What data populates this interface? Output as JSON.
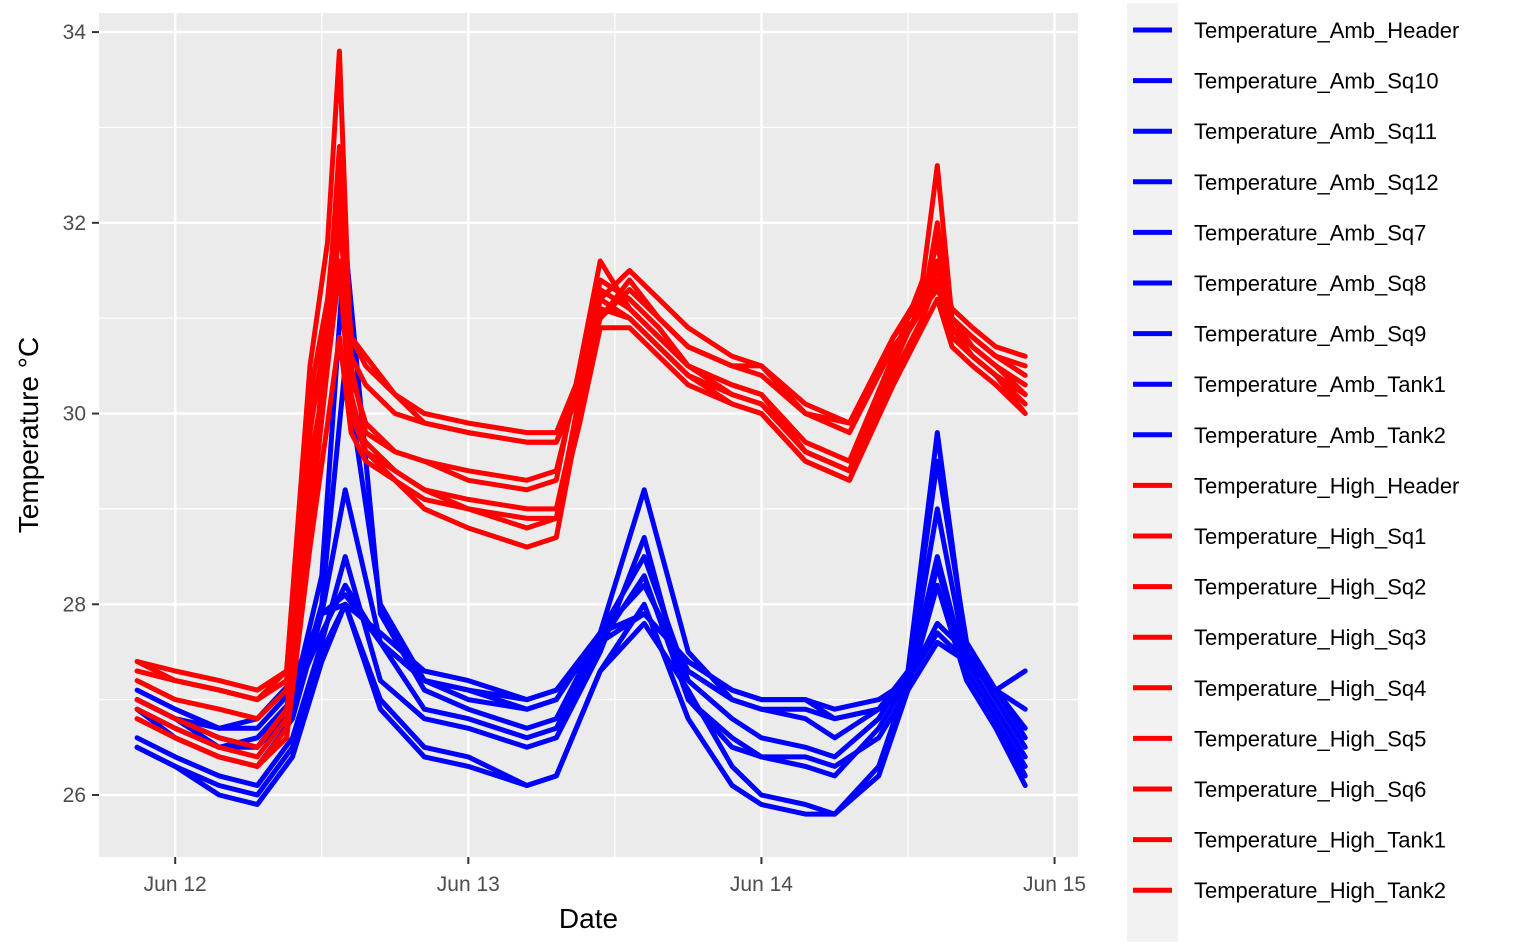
{
  "chart_data": {
    "type": "line",
    "title": "",
    "xlabel": "Date",
    "ylabel": "Temperature °C",
    "x_unit": "days since Jun 12 00:00",
    "xlim": [
      -0.26,
      3.08
    ],
    "ylim": [
      25.35,
      34.2
    ],
    "x_ticks": [
      {
        "value": 0,
        "label": "Jun 12"
      },
      {
        "value": 1,
        "label": "Jun 13"
      },
      {
        "value": 2,
        "label": "Jun 14"
      },
      {
        "value": 3,
        "label": "Jun 15"
      }
    ],
    "y_ticks": [
      {
        "value": 26,
        "label": "26"
      },
      {
        "value": 28,
        "label": "28"
      },
      {
        "value": 30,
        "label": "30"
      },
      {
        "value": 32,
        "label": "32"
      },
      {
        "value": 34,
        "label": "34"
      }
    ],
    "legend_position": "right",
    "colors": {
      "amb": "#0000FF",
      "high": "#FF0000",
      "panel": "#EBEBEB",
      "grid": "#FFFFFF",
      "legend_bg": "#F2F2F2"
    },
    "series": [
      {
        "name": "Temperature_Amb_Header",
        "group": "amb",
        "x": [
          -0.13,
          0.0,
          0.15,
          0.28,
          0.4,
          0.5,
          0.58,
          0.7,
          0.85,
          1.0,
          1.2,
          1.3,
          1.45,
          1.6,
          1.75,
          1.9,
          2.0,
          2.15,
          2.25,
          2.4,
          2.5,
          2.6,
          2.7,
          2.8,
          2.9
        ],
        "y": [
          26.9,
          26.7,
          26.5,
          26.6,
          27.0,
          27.7,
          28.2,
          27.6,
          27.2,
          27.1,
          27.0,
          27.1,
          27.6,
          27.9,
          27.4,
          27.1,
          27.0,
          27.0,
          26.8,
          26.9,
          27.1,
          27.6,
          27.4,
          27.1,
          26.7
        ]
      },
      {
        "name": "Temperature_Amb_Sq10",
        "group": "amb",
        "x": [
          -0.13,
          0.0,
          0.15,
          0.28,
          0.4,
          0.5,
          0.58,
          0.7,
          0.85,
          1.0,
          1.2,
          1.3,
          1.45,
          1.6,
          1.75,
          1.9,
          2.0,
          2.15,
          2.25,
          2.4,
          2.5,
          2.6,
          2.7,
          2.8,
          2.9
        ],
        "y": [
          26.5,
          26.3,
          26.1,
          26.0,
          26.5,
          27.5,
          28.0,
          27.0,
          26.5,
          26.4,
          26.1,
          26.2,
          27.3,
          27.8,
          27.1,
          26.3,
          26.0,
          25.9,
          25.8,
          26.3,
          27.2,
          28.5,
          27.3,
          26.8,
          26.2
        ]
      },
      {
        "name": "Temperature_Amb_Sq11",
        "group": "amb",
        "x": [
          -0.13,
          0.0,
          0.15,
          0.28,
          0.4,
          0.5,
          0.58,
          0.7,
          0.85,
          1.0,
          1.2,
          1.3,
          1.45,
          1.6,
          1.75,
          1.9,
          2.0,
          2.15,
          2.25,
          2.4,
          2.5,
          2.6,
          2.7,
          2.8,
          2.9
        ],
        "y": [
          27.0,
          26.8,
          26.5,
          26.5,
          26.9,
          28.0,
          30.5,
          28.0,
          27.2,
          27.0,
          26.9,
          27.0,
          27.7,
          28.2,
          27.3,
          27.0,
          26.9,
          26.8,
          26.6,
          26.9,
          27.3,
          29.5,
          27.6,
          27.1,
          26.6
        ]
      },
      {
        "name": "Temperature_Amb_Sq12",
        "group": "amb",
        "x": [
          -0.13,
          0.0,
          0.15,
          0.28,
          0.4,
          0.5,
          0.58,
          0.7,
          0.85,
          1.0,
          1.2,
          1.3,
          1.45,
          1.6,
          1.75,
          1.9,
          2.0,
          2.15,
          2.25,
          2.4,
          2.5,
          2.6,
          2.7,
          2.8,
          2.9
        ],
        "y": [
          27.0,
          26.8,
          26.6,
          26.5,
          27.0,
          28.3,
          31.8,
          27.9,
          27.1,
          26.9,
          26.7,
          26.8,
          27.7,
          28.5,
          27.2,
          26.8,
          26.6,
          26.5,
          26.4,
          26.8,
          27.3,
          29.8,
          27.5,
          27.0,
          26.5
        ]
      },
      {
        "name": "Temperature_Amb_Sq7",
        "group": "amb",
        "x": [
          -0.13,
          0.0,
          0.15,
          0.28,
          0.4,
          0.5,
          0.58,
          0.7,
          0.85,
          1.0,
          1.2,
          1.3,
          1.45,
          1.6,
          1.75,
          1.9,
          2.0,
          2.15,
          2.25,
          2.4,
          2.5,
          2.6,
          2.7,
          2.8,
          2.9
        ],
        "y": [
          26.9,
          26.6,
          26.4,
          26.3,
          26.8,
          27.9,
          29.2,
          27.6,
          26.9,
          26.8,
          26.6,
          26.7,
          27.6,
          28.3,
          27.0,
          26.6,
          26.4,
          26.3,
          26.2,
          26.7,
          27.2,
          29.0,
          27.4,
          26.9,
          26.4
        ]
      },
      {
        "name": "Temperature_Amb_Sq8",
        "group": "amb",
        "x": [
          -0.13,
          0.0,
          0.15,
          0.28,
          0.4,
          0.5,
          0.58,
          0.7,
          0.85,
          1.0,
          1.2,
          1.3,
          1.45,
          1.6,
          1.75,
          1.9,
          2.0,
          2.15,
          2.25,
          2.4,
          2.5,
          2.6,
          2.7,
          2.8,
          2.9
        ],
        "y": [
          26.6,
          26.4,
          26.2,
          26.1,
          26.6,
          27.6,
          28.5,
          27.2,
          26.8,
          26.7,
          26.5,
          26.6,
          27.5,
          28.7,
          27.0,
          26.5,
          26.4,
          26.4,
          26.3,
          26.6,
          27.1,
          28.4,
          27.3,
          26.8,
          26.3
        ]
      },
      {
        "name": "Temperature_Amb_Sq9",
        "group": "amb",
        "x": [
          -0.13,
          0.0,
          0.15,
          0.28,
          0.4,
          0.5,
          0.58,
          0.7,
          0.85,
          1.0,
          1.2,
          1.3,
          1.45,
          1.6,
          1.75,
          1.9,
          2.0,
          2.15,
          2.25,
          2.4,
          2.5,
          2.6,
          2.7,
          2.8,
          2.9
        ],
        "y": [
          26.5,
          26.3,
          26.0,
          25.9,
          26.4,
          27.4,
          28.0,
          26.9,
          26.4,
          26.3,
          26.1,
          26.2,
          27.3,
          28.0,
          26.8,
          26.1,
          25.9,
          25.8,
          25.8,
          26.2,
          27.1,
          28.2,
          27.2,
          26.7,
          26.1
        ]
      },
      {
        "name": "Temperature_Amb_Tank1",
        "group": "amb",
        "x": [
          -0.13,
          0.0,
          0.15,
          0.28,
          0.4,
          0.5,
          0.58,
          0.7,
          0.85,
          1.0,
          1.2,
          1.3,
          1.45,
          1.6,
          1.75,
          1.9,
          2.0,
          2.15,
          2.25,
          2.4,
          2.5,
          2.6,
          2.7,
          2.8,
          2.9
        ],
        "y": [
          27.0,
          26.8,
          26.7,
          26.7,
          27.1,
          27.9,
          28.0,
          27.7,
          27.3,
          27.2,
          27.0,
          27.1,
          27.7,
          27.9,
          27.4,
          27.1,
          27.0,
          27.0,
          26.9,
          27.0,
          27.2,
          27.7,
          27.4,
          27.1,
          26.9
        ]
      },
      {
        "name": "Temperature_Amb_Tank2",
        "group": "amb",
        "x": [
          -0.13,
          0.0,
          0.15,
          0.28,
          0.4,
          0.5,
          0.58,
          0.7,
          0.85,
          1.0,
          1.2,
          1.3,
          1.45,
          1.6,
          1.75,
          1.9,
          2.0,
          2.15,
          2.25,
          2.4,
          2.5,
          2.6,
          2.7,
          2.8,
          2.9
        ],
        "y": [
          27.1,
          26.9,
          26.7,
          26.8,
          27.2,
          27.9,
          28.1,
          27.6,
          27.2,
          27.1,
          26.9,
          27.0,
          27.7,
          29.2,
          27.5,
          27.0,
          26.9,
          26.9,
          26.8,
          26.9,
          27.2,
          27.8,
          27.5,
          27.1,
          27.3
        ]
      },
      {
        "name": "Temperature_High_Header",
        "group": "high",
        "x": [
          -0.13,
          0.0,
          0.15,
          0.28,
          0.38,
          0.46,
          0.52,
          0.56,
          0.6,
          0.65,
          0.75,
          0.85,
          1.0,
          1.2,
          1.3,
          1.38,
          1.45,
          1.55,
          1.65,
          1.75,
          1.9,
          2.0,
          2.15,
          2.3,
          2.45,
          2.55,
          2.6,
          2.65,
          2.72,
          2.8,
          2.9
        ],
        "y": [
          27.3,
          27.2,
          27.1,
          27.0,
          27.2,
          29.5,
          30.5,
          32.0,
          30.8,
          30.6,
          30.2,
          29.9,
          29.8,
          29.7,
          29.7,
          30.2,
          31.0,
          31.4,
          31.0,
          30.7,
          30.5,
          30.5,
          30.0,
          29.9,
          30.8,
          31.2,
          31.5,
          31.0,
          30.8,
          30.6,
          30.4
        ]
      },
      {
        "name": "Temperature_High_Sq1",
        "group": "high",
        "x": [
          -0.13,
          0.0,
          0.15,
          0.28,
          0.38,
          0.46,
          0.52,
          0.56,
          0.6,
          0.65,
          0.75,
          0.85,
          1.0,
          1.2,
          1.3,
          1.38,
          1.45,
          1.55,
          1.65,
          1.75,
          1.9,
          2.0,
          2.15,
          2.3,
          2.45,
          2.55,
          2.6,
          2.65,
          2.72,
          2.8,
          2.9
        ],
        "y": [
          27.4,
          27.2,
          27.1,
          27.0,
          27.3,
          30.5,
          31.8,
          33.8,
          30.5,
          29.8,
          29.6,
          29.5,
          29.3,
          29.2,
          29.3,
          30.5,
          31.6,
          31.1,
          30.8,
          30.5,
          30.2,
          30.1,
          29.6,
          29.4,
          30.6,
          31.4,
          32.6,
          31.0,
          30.7,
          30.5,
          30.2
        ]
      },
      {
        "name": "Temperature_High_Sq2",
        "group": "high",
        "x": [
          -0.13,
          0.0,
          0.15,
          0.28,
          0.38,
          0.46,
          0.52,
          0.56,
          0.6,
          0.65,
          0.75,
          0.85,
          1.0,
          1.2,
          1.3,
          1.38,
          1.45,
          1.55,
          1.65,
          1.75,
          1.9,
          2.0,
          2.15,
          2.3,
          2.45,
          2.55,
          2.6,
          2.65,
          2.72,
          2.8,
          2.9
        ],
        "y": [
          27.0,
          26.8,
          26.6,
          26.5,
          26.9,
          28.8,
          30.5,
          31.5,
          30.0,
          29.6,
          29.3,
          29.0,
          28.8,
          28.6,
          28.7,
          30.0,
          31.2,
          31.0,
          30.7,
          30.4,
          30.1,
          30.0,
          29.5,
          29.3,
          30.4,
          31.0,
          31.4,
          30.8,
          30.6,
          30.4,
          30.1
        ]
      },
      {
        "name": "Temperature_High_Sq3",
        "group": "high",
        "x": [
          -0.13,
          0.0,
          0.15,
          0.28,
          0.38,
          0.46,
          0.52,
          0.56,
          0.6,
          0.65,
          0.75,
          0.85,
          1.0,
          1.2,
          1.3,
          1.38,
          1.45,
          1.55,
          1.65,
          1.75,
          1.9,
          2.0,
          2.15,
          2.3,
          2.45,
          2.55,
          2.6,
          2.65,
          2.72,
          2.8,
          2.9
        ],
        "y": [
          26.8,
          26.6,
          26.4,
          26.3,
          26.7,
          29.0,
          31.0,
          32.8,
          30.2,
          29.6,
          29.4,
          29.2,
          29.0,
          28.8,
          28.9,
          30.2,
          31.4,
          31.2,
          30.9,
          30.5,
          30.3,
          30.2,
          29.6,
          29.4,
          30.5,
          31.2,
          31.8,
          30.9,
          30.6,
          30.4,
          30.0
        ]
      },
      {
        "name": "Temperature_High_Sq4",
        "group": "high",
        "x": [
          -0.13,
          0.0,
          0.15,
          0.28,
          0.38,
          0.46,
          0.52,
          0.56,
          0.6,
          0.65,
          0.75,
          0.85,
          1.0,
          1.2,
          1.3,
          1.38,
          1.45,
          1.55,
          1.65,
          1.75,
          1.9,
          2.0,
          2.15,
          2.3,
          2.45,
          2.55,
          2.6,
          2.65,
          2.72,
          2.8,
          2.9
        ],
        "y": [
          27.2,
          27.0,
          26.9,
          26.8,
          27.1,
          29.8,
          31.0,
          32.2,
          30.4,
          29.9,
          29.6,
          29.5,
          29.4,
          29.3,
          29.4,
          30.4,
          31.3,
          31.1,
          30.8,
          30.5,
          30.3,
          30.2,
          29.7,
          29.5,
          30.6,
          31.1,
          32.0,
          30.9,
          30.7,
          30.5,
          30.3
        ]
      },
      {
        "name": "Temperature_High_Sq5",
        "group": "high",
        "x": [
          -0.13,
          0.0,
          0.15,
          0.28,
          0.38,
          0.46,
          0.52,
          0.56,
          0.6,
          0.65,
          0.75,
          0.85,
          1.0,
          1.2,
          1.3,
          1.38,
          1.45,
          1.55,
          1.65,
          1.75,
          1.9,
          2.0,
          2.15,
          2.3,
          2.45,
          2.55,
          2.6,
          2.65,
          2.72,
          2.8,
          2.9
        ],
        "y": [
          26.9,
          26.7,
          26.5,
          26.4,
          26.8,
          29.2,
          30.6,
          31.6,
          30.0,
          29.7,
          29.4,
          29.2,
          29.1,
          29.0,
          29.0,
          30.1,
          31.1,
          31.0,
          30.7,
          30.4,
          30.2,
          30.1,
          29.6,
          29.4,
          30.4,
          31.0,
          31.6,
          30.8,
          30.6,
          30.4,
          30.2
        ]
      },
      {
        "name": "Temperature_High_Sq6",
        "group": "high",
        "x": [
          -0.13,
          0.0,
          0.15,
          0.28,
          0.38,
          0.46,
          0.52,
          0.56,
          0.6,
          0.65,
          0.75,
          0.85,
          1.0,
          1.2,
          1.3,
          1.38,
          1.45,
          1.55,
          1.65,
          1.75,
          1.9,
          2.0,
          2.15,
          2.3,
          2.45,
          2.55,
          2.6,
          2.65,
          2.72,
          2.8,
          2.9
        ],
        "y": [
          26.8,
          26.6,
          26.4,
          26.3,
          26.6,
          28.6,
          29.9,
          30.8,
          29.8,
          29.5,
          29.3,
          29.1,
          29.0,
          28.9,
          28.9,
          29.9,
          30.9,
          30.9,
          30.6,
          30.3,
          30.1,
          30.0,
          29.5,
          29.3,
          30.3,
          30.9,
          31.2,
          30.7,
          30.5,
          30.3,
          30.0
        ]
      },
      {
        "name": "Temperature_High_Tank1",
        "group": "high",
        "x": [
          -0.13,
          0.0,
          0.15,
          0.28,
          0.38,
          0.46,
          0.52,
          0.56,
          0.6,
          0.65,
          0.75,
          0.85,
          1.0,
          1.2,
          1.3,
          1.38,
          1.45,
          1.55,
          1.65,
          1.75,
          1.9,
          2.0,
          2.15,
          2.3,
          2.45,
          2.55,
          2.6,
          2.65,
          2.72,
          2.8,
          2.9
        ],
        "y": [
          27.3,
          27.2,
          27.1,
          27.0,
          27.2,
          30.0,
          30.8,
          31.5,
          30.6,
          30.3,
          30.0,
          29.9,
          29.8,
          29.7,
          29.7,
          30.3,
          31.0,
          31.3,
          31.0,
          30.7,
          30.5,
          30.4,
          30.0,
          29.8,
          30.7,
          31.1,
          31.3,
          31.0,
          30.8,
          30.6,
          30.5
        ]
      },
      {
        "name": "Temperature_High_Tank2",
        "group": "high",
        "x": [
          -0.13,
          0.0,
          0.15,
          0.28,
          0.38,
          0.46,
          0.52,
          0.56,
          0.6,
          0.65,
          0.75,
          0.85,
          1.0,
          1.2,
          1.3,
          1.38,
          1.45,
          1.55,
          1.65,
          1.75,
          1.9,
          2.0,
          2.15,
          2.3,
          2.45,
          2.55,
          2.6,
          2.65,
          2.72,
          2.8,
          2.9
        ],
        "y": [
          27.4,
          27.3,
          27.2,
          27.1,
          27.3,
          30.2,
          31.2,
          32.5,
          30.8,
          30.5,
          30.2,
          30.0,
          29.9,
          29.8,
          29.8,
          30.4,
          31.2,
          31.5,
          31.2,
          30.9,
          30.6,
          30.5,
          30.1,
          29.9,
          30.8,
          31.3,
          31.6,
          31.1,
          30.9,
          30.7,
          30.6
        ]
      }
    ]
  }
}
